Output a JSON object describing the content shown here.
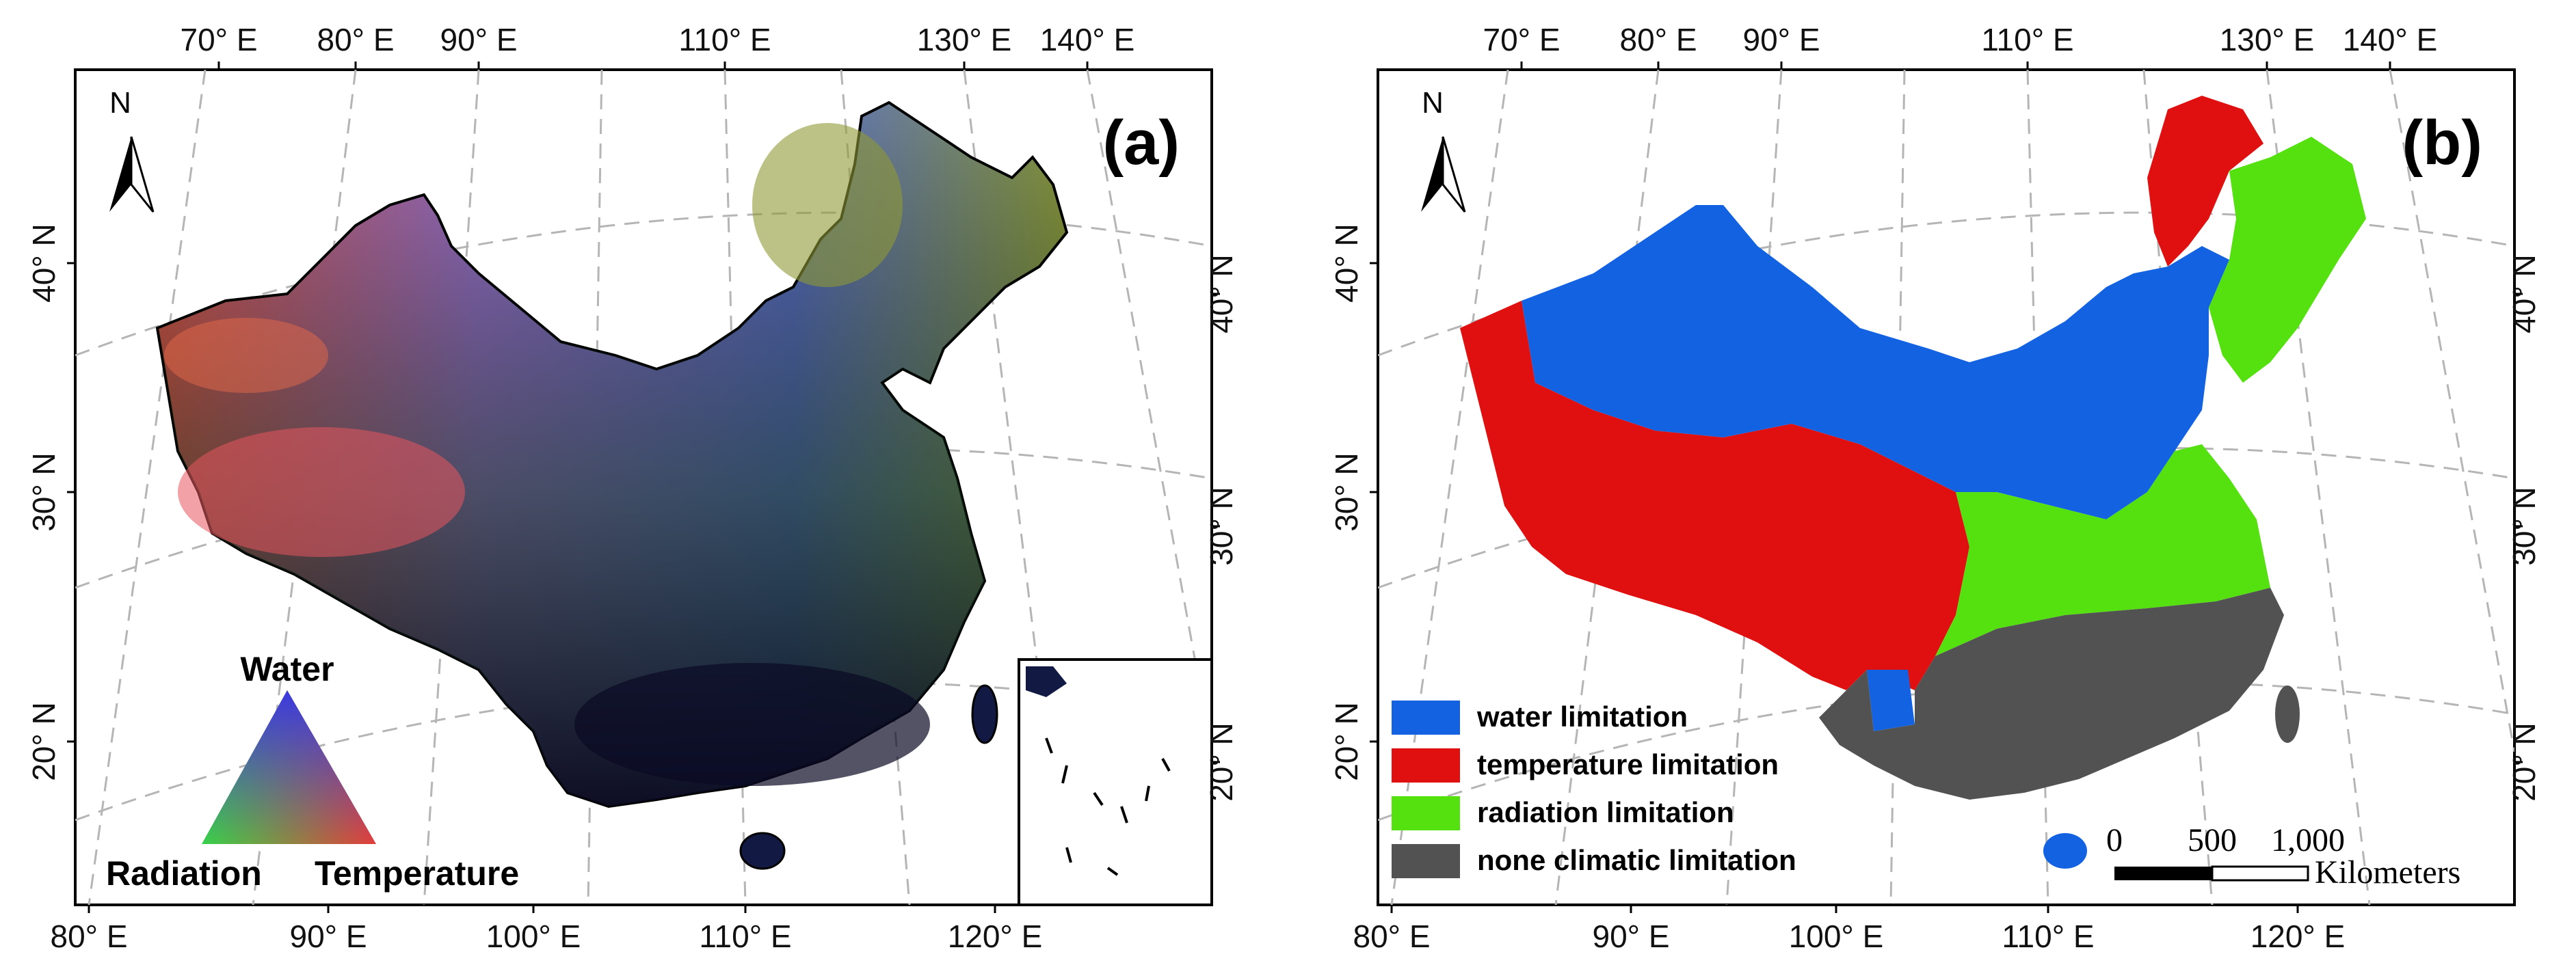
{
  "panels": [
    {
      "id": "a",
      "label": "(a)",
      "top_ticks": [
        "70° E",
        "80° E",
        "90° E",
        "110° E",
        "130° E",
        "140° E"
      ],
      "bottom_ticks": [
        "80° E",
        "90° E",
        "100° E",
        "110° E",
        "120° E"
      ],
      "left_ticks": [
        "40° N",
        "30° N",
        "20° N"
      ],
      "right_ticks": [
        "40° N",
        "30° N",
        "20° N"
      ],
      "north": "N",
      "triangle_legend": {
        "top": "Water",
        "left": "Radiation",
        "right": "Temperature"
      }
    },
    {
      "id": "b",
      "label": "(b)",
      "top_ticks": [
        "70° E",
        "80° E",
        "90° E",
        "110° E",
        "130° E",
        "140° E"
      ],
      "bottom_ticks": [
        "80° E",
        "90° E",
        "100° E",
        "110° E",
        "120° E"
      ],
      "left_ticks": [
        "40° N",
        "30° N",
        "20° N"
      ],
      "right_ticks": [
        "40° N",
        "30° N",
        "20° N"
      ],
      "north": "N",
      "legend": [
        {
          "label": "water limitation",
          "color": "#1262e2"
        },
        {
          "label": "temperature limitation",
          "color": "#e01010"
        },
        {
          "label": "radiation limitation",
          "color": "#55e010"
        },
        {
          "label": "none climatic limitation",
          "color": "#525252"
        }
      ],
      "scale_bar": {
        "labels": [
          "0",
          "500",
          "1,000"
        ],
        "unit": "Kilometers"
      }
    }
  ]
}
